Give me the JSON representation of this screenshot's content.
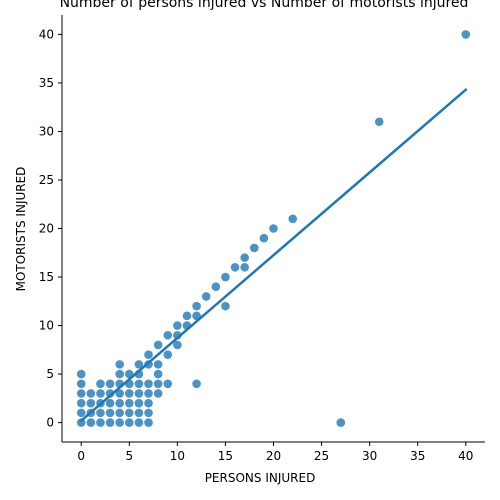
{
  "chart_data": {
    "type": "scatter",
    "title": "Number of persons injured vs Number of motorists injured",
    "xlabel": "PERSONS INJURED",
    "ylabel": "MOTORISTS INJURED",
    "xlim": [
      -2,
      42
    ],
    "ylim": [
      -2,
      42
    ],
    "xticks": [
      0,
      5,
      10,
      15,
      20,
      25,
      30,
      35,
      40
    ],
    "yticks": [
      0,
      5,
      10,
      15,
      20,
      25,
      30,
      35,
      40
    ],
    "grid": false,
    "point_color": "#1f77b4",
    "line_color": "#1f77b4",
    "regression_line": {
      "x": [
        0,
        40
      ],
      "y": [
        0.2,
        34.3
      ]
    },
    "points": [
      [
        0,
        0
      ],
      [
        0,
        1
      ],
      [
        0,
        2
      ],
      [
        0,
        3
      ],
      [
        0,
        4
      ],
      [
        0,
        5
      ],
      [
        1,
        0
      ],
      [
        1,
        1
      ],
      [
        1,
        2
      ],
      [
        1,
        3
      ],
      [
        2,
        0
      ],
      [
        2,
        1
      ],
      [
        2,
        2
      ],
      [
        2,
        3
      ],
      [
        2,
        4
      ],
      [
        3,
        0
      ],
      [
        3,
        1
      ],
      [
        3,
        2
      ],
      [
        3,
        3
      ],
      [
        3,
        4
      ],
      [
        4,
        0
      ],
      [
        4,
        1
      ],
      [
        4,
        2
      ],
      [
        4,
        3
      ],
      [
        4,
        4
      ],
      [
        4,
        5
      ],
      [
        4,
        6
      ],
      [
        5,
        0
      ],
      [
        5,
        1
      ],
      [
        5,
        2
      ],
      [
        5,
        3
      ],
      [
        5,
        4
      ],
      [
        5,
        5
      ],
      [
        6,
        0
      ],
      [
        6,
        1
      ],
      [
        6,
        2
      ],
      [
        6,
        3
      ],
      [
        6,
        4
      ],
      [
        6,
        5
      ],
      [
        6,
        6
      ],
      [
        7,
        0
      ],
      [
        7,
        1
      ],
      [
        7,
        2
      ],
      [
        7,
        3
      ],
      [
        7,
        4
      ],
      [
        7,
        6
      ],
      [
        7,
        7
      ],
      [
        8,
        3
      ],
      [
        8,
        4
      ],
      [
        8,
        5
      ],
      [
        8,
        6
      ],
      [
        8,
        8
      ],
      [
        9,
        4
      ],
      [
        9,
        7
      ],
      [
        9,
        9
      ],
      [
        10,
        8
      ],
      [
        10,
        9
      ],
      [
        10,
        10
      ],
      [
        11,
        10
      ],
      [
        11,
        11
      ],
      [
        12,
        4
      ],
      [
        12,
        11
      ],
      [
        12,
        12
      ],
      [
        13,
        13
      ],
      [
        14,
        14
      ],
      [
        15,
        12
      ],
      [
        15,
        15
      ],
      [
        16,
        16
      ],
      [
        17,
        16
      ],
      [
        17,
        17
      ],
      [
        18,
        18
      ],
      [
        19,
        19
      ],
      [
        20,
        20
      ],
      [
        22,
        21
      ],
      [
        27,
        0
      ],
      [
        31,
        31
      ],
      [
        40,
        40
      ]
    ]
  }
}
